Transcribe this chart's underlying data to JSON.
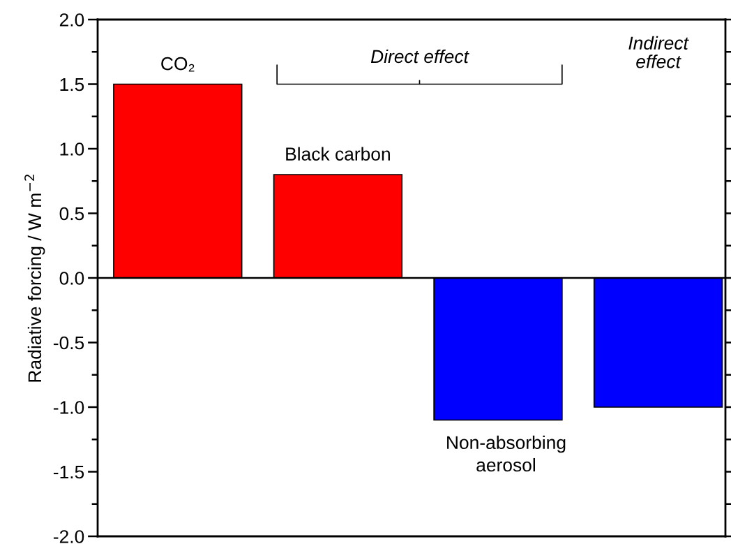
{
  "chart_data": {
    "type": "bar",
    "ylabel": "Radiative forcing / W m$^{−2}$",
    "categories": [
      "CO₂",
      "Black carbon",
      "Non-absorbing\naerosol",
      null
    ],
    "values": [
      1.5,
      0.8,
      -1.1,
      -1.0
    ],
    "colors": [
      "#ff0000",
      "#ff0000",
      "#0000ff",
      "#0000ff"
    ],
    "ylim": [
      -2.0,
      2.0
    ],
    "yticks": [
      {
        "value": -2.0,
        "label": "-2.0"
      },
      {
        "value": -1.5,
        "label": "-1.5"
      },
      {
        "value": -1.0,
        "label": "-1.0"
      },
      {
        "value": -0.5,
        "label": "-0.5"
      },
      {
        "value": 0.0,
        "label": "0.0"
      },
      {
        "value": 0.5,
        "label": "0.5"
      },
      {
        "value": 1.0,
        "label": "1.0"
      },
      {
        "value": 1.5,
        "label": "1.5"
      },
      {
        "value": 2.0,
        "label": "2.0"
      }
    ],
    "ref_lines": [
      {
        "axis": "y",
        "value": 0,
        "color": "#000000"
      }
    ],
    "annotations": [
      "Direct effect",
      "Indirect\neffect"
    ],
    "tick_labels": "y"
  }
}
